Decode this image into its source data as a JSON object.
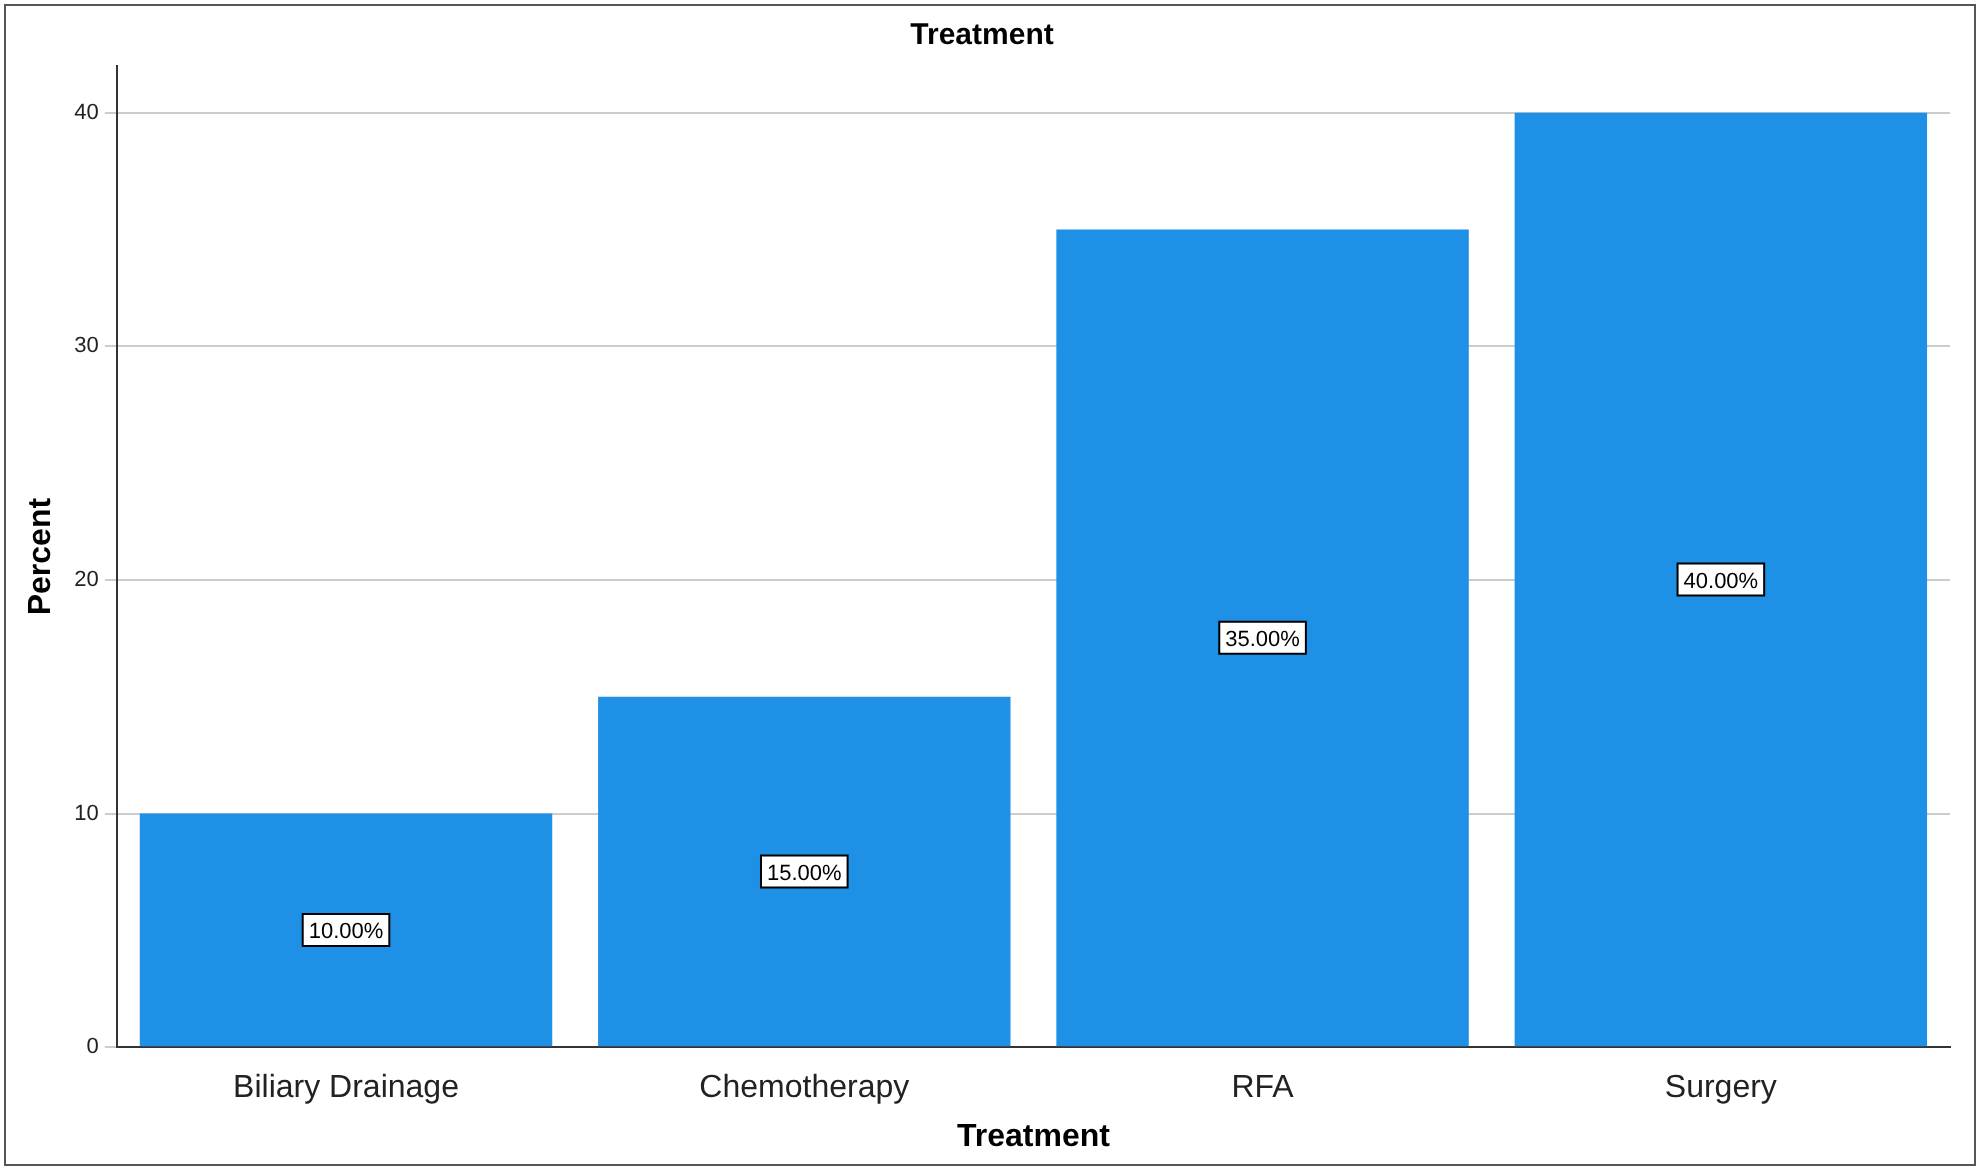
{
  "chart_data": {
    "type": "bar",
    "title": "Treatment",
    "xlabel": "Treatment",
    "ylabel": "Percent",
    "categories": [
      "Biliary Drainage",
      "Chemotherapy",
      "RFA",
      "Surgery"
    ],
    "values": [
      10,
      15,
      35,
      40
    ],
    "color": "#1e91e6",
    "value_labels": [
      "10.00%",
      "15.00%",
      "35.00%",
      "40.00%"
    ],
    "ylim": [
      0,
      42
    ],
    "yticks": [
      0,
      10,
      20,
      30,
      40
    ],
    "grid": "y",
    "legend": false
  }
}
